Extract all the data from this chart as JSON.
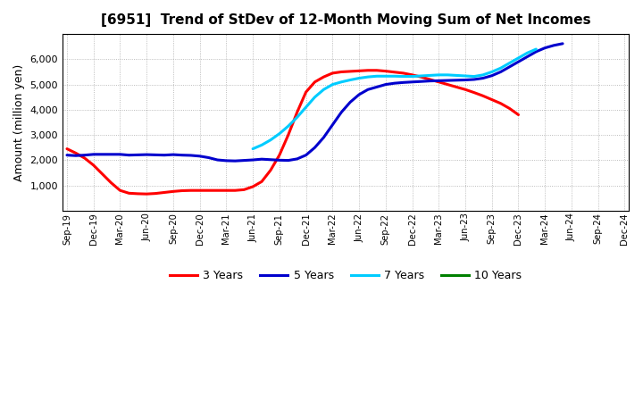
{
  "title": "[6951]  Trend of StDev of 12-Month Moving Sum of Net Incomes",
  "ylabel": "Amount (million yen)",
  "background_color": "#ffffff",
  "grid_color": "#999999",
  "ylim": [
    0,
    7000
  ],
  "yticks": [
    1000,
    2000,
    3000,
    4000,
    5000,
    6000
  ],
  "series": {
    "3years": {
      "color": "#ff0000",
      "label": "3 Years",
      "y": [
        2450,
        2280,
        2080,
        1800,
        1450,
        1100,
        800,
        690,
        670,
        660,
        680,
        720,
        760,
        790,
        800,
        800,
        800,
        800,
        800,
        800,
        830,
        950,
        1150,
        1600,
        2200,
        3000,
        3900,
        4700,
        5100,
        5300,
        5450,
        5500,
        5520,
        5540,
        5560,
        5560,
        5530,
        5490,
        5450,
        5380,
        5300,
        5200,
        5100,
        5000,
        4900,
        4800,
        4680,
        4550,
        4400,
        4250,
        4050,
        3800,
        null,
        null,
        null,
        null,
        null,
        null,
        null,
        null,
        null,
        null,
        null,
        null
      ]
    },
    "5years": {
      "color": "#0000cd",
      "label": "5 Years",
      "y": [
        2200,
        2180,
        2200,
        2230,
        2230,
        2230,
        2230,
        2200,
        2210,
        2220,
        2210,
        2200,
        2220,
        2200,
        2190,
        2160,
        2100,
        2010,
        1980,
        1970,
        1990,
        2010,
        2040,
        2020,
        2000,
        1990,
        2050,
        2200,
        2500,
        2900,
        3400,
        3900,
        4300,
        4600,
        4800,
        4900,
        5000,
        5050,
        5080,
        5100,
        5120,
        5140,
        5150,
        5160,
        5170,
        5180,
        5200,
        5250,
        5350,
        5500,
        5700,
        5900,
        6100,
        6300,
        6450,
        6550,
        6620,
        null,
        null,
        null,
        null,
        null,
        null,
        null
      ]
    },
    "7years": {
      "color": "#00ccff",
      "label": "7 Years",
      "y": [
        null,
        null,
        null,
        null,
        null,
        null,
        null,
        null,
        null,
        null,
        null,
        null,
        null,
        null,
        null,
        null,
        null,
        null,
        null,
        null,
        null,
        2450,
        2600,
        2800,
        3050,
        3350,
        3700,
        4100,
        4500,
        4800,
        5000,
        5100,
        5180,
        5250,
        5300,
        5330,
        5330,
        5330,
        5320,
        5320,
        5340,
        5360,
        5380,
        5380,
        5360,
        5340,
        5320,
        5380,
        5500,
        5650,
        5850,
        6050,
        6250,
        6400,
        null,
        null,
        null,
        null,
        null,
        null,
        null,
        null,
        null,
        null
      ]
    },
    "10years": {
      "color": "#008000",
      "label": "10 Years",
      "y": [
        null,
        null,
        null,
        null,
        null,
        null,
        null,
        null,
        null,
        null,
        null,
        null,
        null,
        null,
        null,
        null,
        null,
        null,
        null,
        null,
        null,
        null,
        null,
        null,
        null,
        null,
        null,
        null,
        null,
        null,
        null,
        null,
        null,
        null,
        null,
        null,
        null,
        null,
        null,
        null,
        null,
        null,
        null,
        null,
        null,
        null,
        null,
        null,
        null,
        null,
        null,
        null,
        null,
        null,
        null,
        null,
        null,
        null,
        null,
        null,
        null,
        null,
        null,
        null
      ]
    }
  },
  "xtick_labels": [
    "Sep-19",
    "Dec-19",
    "Mar-20",
    "Jun-20",
    "Sep-20",
    "Dec-20",
    "Mar-21",
    "Jun-21",
    "Sep-21",
    "Dec-21",
    "Mar-22",
    "Jun-22",
    "Sep-22",
    "Dec-22",
    "Mar-23",
    "Jun-23",
    "Sep-23",
    "Dec-23",
    "Mar-24",
    "Jun-24",
    "Sep-24",
    "Dec-24"
  ],
  "xtick_positions": [
    0,
    3,
    6,
    9,
    12,
    15,
    18,
    21,
    24,
    27,
    30,
    33,
    36,
    39,
    42,
    45,
    48,
    51,
    54,
    57,
    60,
    63
  ]
}
